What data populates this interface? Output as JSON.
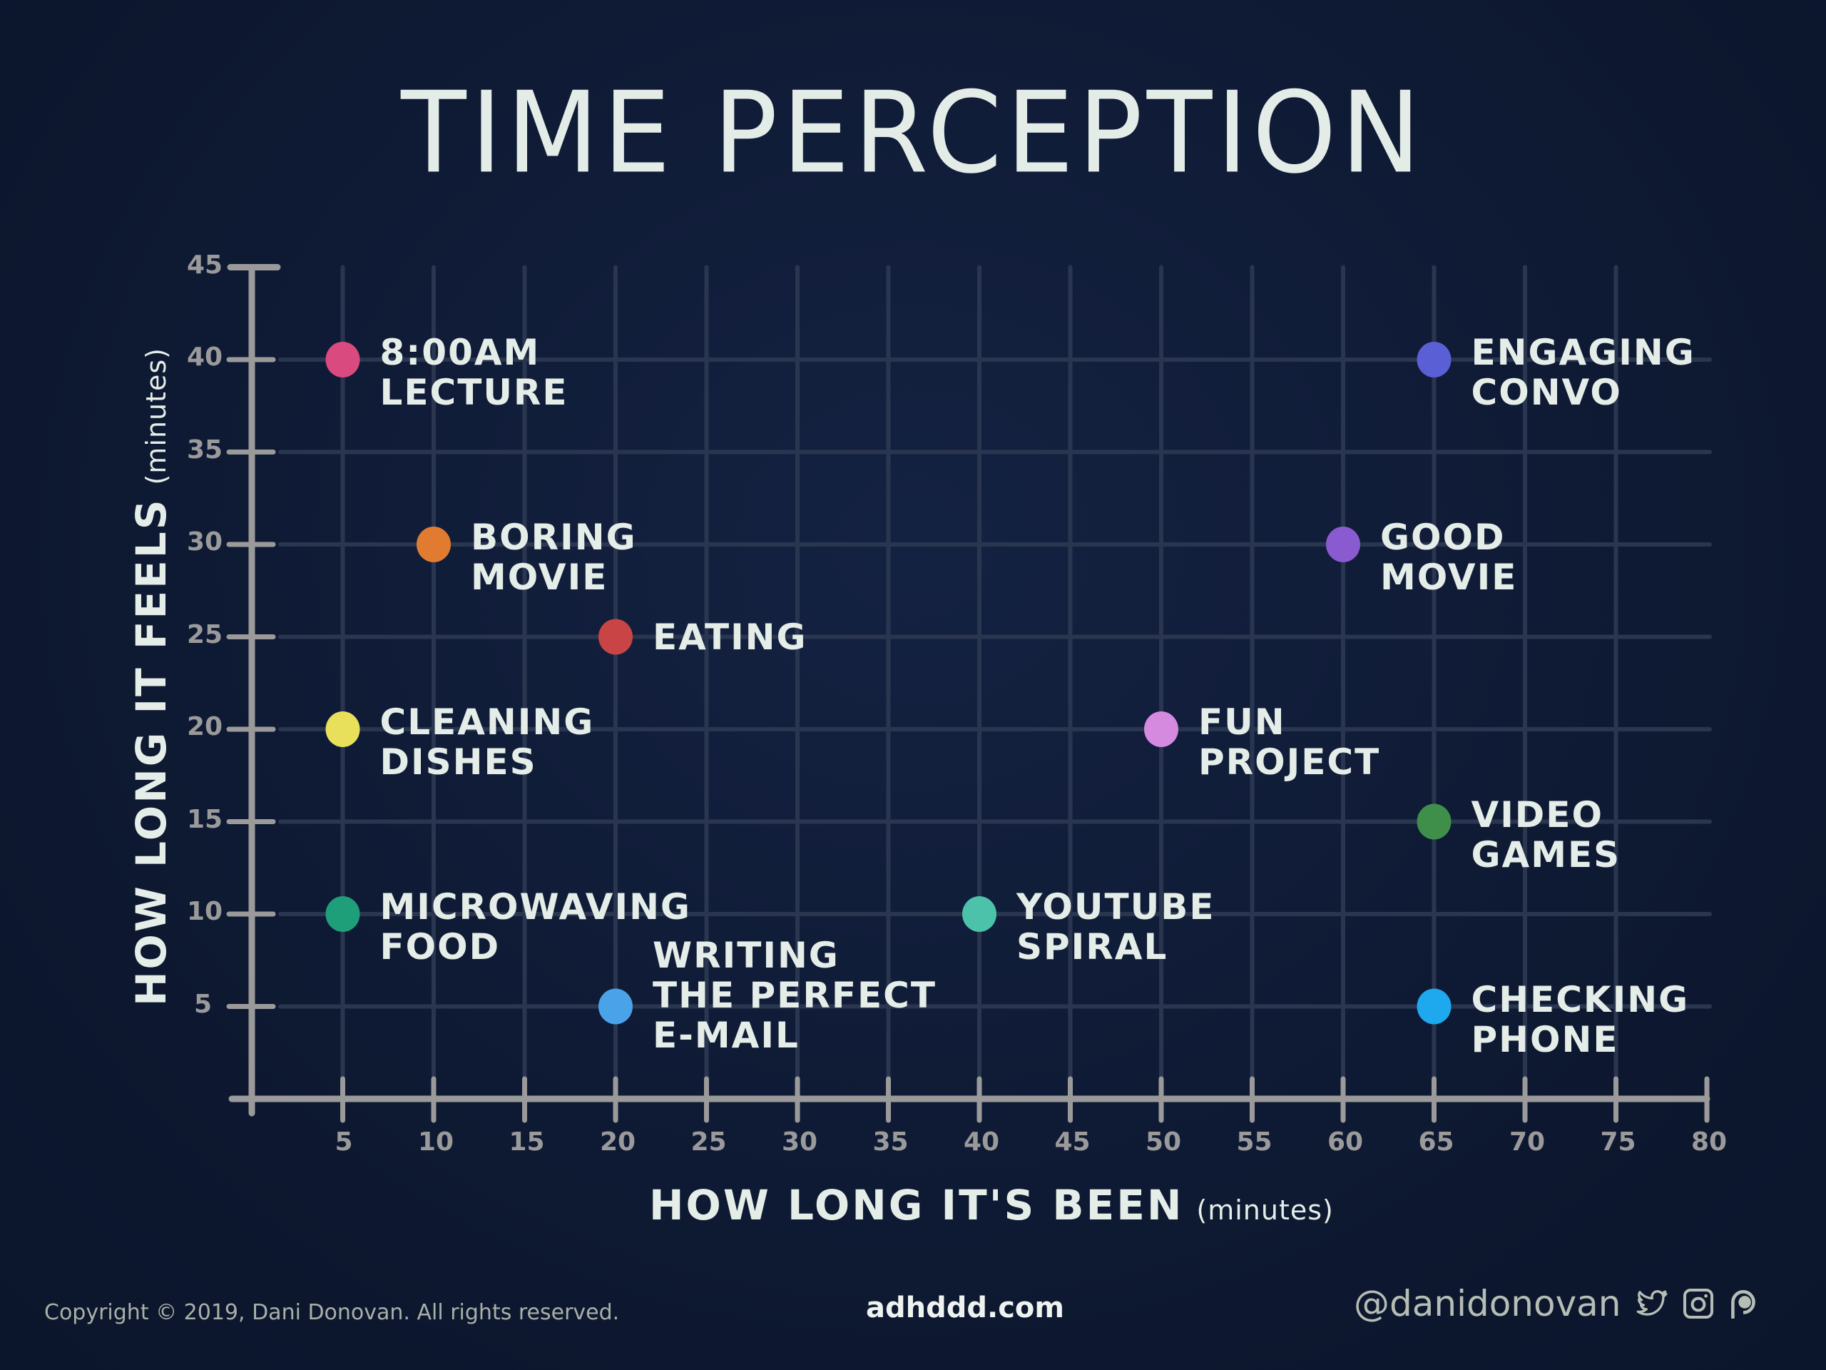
{
  "title": "TIME PERCEPTION",
  "x_axis": {
    "label": "HOW LONG IT'S BEEN",
    "unit": "(minutes)",
    "ticks": [
      "5",
      "10",
      "15",
      "20",
      "25",
      "30",
      "35",
      "40",
      "45",
      "50",
      "55",
      "60",
      "65",
      "70",
      "75",
      "80"
    ]
  },
  "y_axis": {
    "label": "HOW LONG IT FEELS",
    "unit": "(minutes)",
    "ticks": [
      "5",
      "10",
      "15",
      "20",
      "25",
      "30",
      "35",
      "40",
      "45"
    ]
  },
  "points": [
    {
      "line1": "8:00AM",
      "line2": "LECTURE",
      "x": 5,
      "y": 40,
      "color": "#d94a7e"
    },
    {
      "line1": "BORING",
      "line2": "MOVIE",
      "x": 10,
      "y": 30,
      "color": "#e07b30"
    },
    {
      "line1": "EATING",
      "line2": "",
      "x": 20,
      "y": 25,
      "color": "#c94545"
    },
    {
      "line1": "CLEANING",
      "line2": "DISHES",
      "x": 5,
      "y": 20,
      "color": "#e8e05a"
    },
    {
      "line1": "MICROWAVING",
      "line2": "FOOD",
      "x": 5,
      "y": 10,
      "color": "#1f9e7a"
    },
    {
      "line1": "WRITING",
      "line2": "THE PERFECT",
      "line3": "E-MAIL",
      "x": 20,
      "y": 5,
      "color": "#4aa3e8"
    },
    {
      "line1": "YOUTUBE",
      "line2": "SPIRAL",
      "x": 40,
      "y": 10,
      "color": "#4cc2aa"
    },
    {
      "line1": "FUN",
      "line2": "PROJECT",
      "x": 50,
      "y": 20,
      "color": "#d58ae0"
    },
    {
      "line1": "VIDEO",
      "line2": "GAMES",
      "x": 65,
      "y": 15,
      "color": "#3f8f4a"
    },
    {
      "line1": "CHECKING",
      "line2": "PHONE",
      "x": 65,
      "y": 5,
      "color": "#1ea8ee"
    },
    {
      "line1": "GOOD",
      "line2": "MOVIE",
      "x": 60,
      "y": 30,
      "color": "#8a5ad0"
    },
    {
      "line1": "ENGAGING",
      "line2": "CONVO",
      "x": 65,
      "y": 40,
      "color": "#5b5fd6"
    }
  ],
  "footer": {
    "copyright": "Copyright © 2019, Dani Donovan. All rights reserved.",
    "site": "adhddd.com",
    "handle": "@danidonovan",
    "icons": [
      "twitter-icon",
      "instagram-icon",
      "patreon-icon"
    ]
  },
  "colors": {
    "background": "#0f1a33",
    "axis": "#9b9a9a",
    "grid": "#2a3650",
    "text": "#e3ebe6"
  },
  "chart_data": {
    "type": "scatter",
    "title": "TIME PERCEPTION",
    "xlabel": "HOW LONG IT'S BEEN (minutes)",
    "ylabel": "HOW LONG IT FEELS (minutes)",
    "xlim": [
      0,
      80
    ],
    "ylim": [
      0,
      45
    ],
    "grid": true,
    "x_ticks": [
      5,
      10,
      15,
      20,
      25,
      30,
      35,
      40,
      45,
      50,
      55,
      60,
      65,
      70,
      75,
      80
    ],
    "y_ticks": [
      5,
      10,
      15,
      20,
      25,
      30,
      35,
      40,
      45
    ],
    "series": [
      {
        "name": "8:00AM LECTURE",
        "x": 5,
        "y": 40,
        "color": "#d94a7e"
      },
      {
        "name": "BORING MOVIE",
        "x": 10,
        "y": 30,
        "color": "#e07b30"
      },
      {
        "name": "EATING",
        "x": 20,
        "y": 25,
        "color": "#c94545"
      },
      {
        "name": "CLEANING DISHES",
        "x": 5,
        "y": 20,
        "color": "#e8e05a"
      },
      {
        "name": "MICROWAVING FOOD",
        "x": 5,
        "y": 10,
        "color": "#1f9e7a"
      },
      {
        "name": "WRITING THE PERFECT E-MAIL",
        "x": 20,
        "y": 5,
        "color": "#4aa3e8"
      },
      {
        "name": "YOUTUBE SPIRAL",
        "x": 40,
        "y": 10,
        "color": "#4cc2aa"
      },
      {
        "name": "FUN PROJECT",
        "x": 50,
        "y": 20,
        "color": "#d58ae0"
      },
      {
        "name": "VIDEO GAMES",
        "x": 65,
        "y": 15,
        "color": "#3f8f4a"
      },
      {
        "name": "CHECKING PHONE",
        "x": 65,
        "y": 5,
        "color": "#1ea8ee"
      },
      {
        "name": "GOOD MOVIE",
        "x": 60,
        "y": 30,
        "color": "#8a5ad0"
      },
      {
        "name": "ENGAGING CONVO",
        "x": 65,
        "y": 40,
        "color": "#5b5fd6"
      }
    ]
  }
}
